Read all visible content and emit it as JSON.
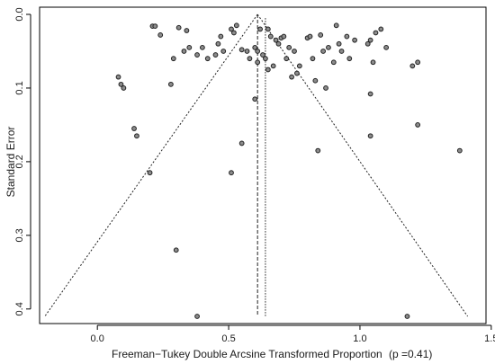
{
  "chart_data": {
    "type": "scatter",
    "title": "",
    "xlabel": "Freeman−Tukey Double Arcsine Transformed Proportion",
    "p_label": "(p =0.41)",
    "ylabel": "Standard Error",
    "xlim": [
      -0.22,
      1.48
    ],
    "ylim": [
      0.0,
      0.41
    ],
    "y_inverted": true,
    "grid": false,
    "x_ticks": [
      0.0,
      0.5,
      1.0,
      1.5
    ],
    "x_tick_labels": [
      "0.0",
      "0.5",
      "1.0",
      "1.5"
    ],
    "y_ticks": [
      0.0,
      0.1,
      0.2,
      0.3,
      0.4
    ],
    "y_tick_labels": [
      "0.0",
      "0.1",
      "0.2",
      "0.3",
      "0.4"
    ],
    "pooled_estimate": 0.61,
    "reference_line": 0.64,
    "funnel": {
      "apex": [
        0.61,
        0.0
      ],
      "left_base": [
        -0.2,
        0.41
      ],
      "right_base": [
        1.41,
        0.41
      ]
    },
    "points": [
      {
        "x": 0.21,
        "y": 0.016
      },
      {
        "x": 0.22,
        "y": 0.016
      },
      {
        "x": 0.24,
        "y": 0.028
      },
      {
        "x": 0.31,
        "y": 0.018
      },
      {
        "x": 0.34,
        "y": 0.022
      },
      {
        "x": 0.29,
        "y": 0.06
      },
      {
        "x": 0.33,
        "y": 0.05
      },
      {
        "x": 0.35,
        "y": 0.045
      },
      {
        "x": 0.38,
        "y": 0.055
      },
      {
        "x": 0.4,
        "y": 0.045
      },
      {
        "x": 0.42,
        "y": 0.06
      },
      {
        "x": 0.45,
        "y": 0.055
      },
      {
        "x": 0.46,
        "y": 0.04
      },
      {
        "x": 0.47,
        "y": 0.03
      },
      {
        "x": 0.48,
        "y": 0.05
      },
      {
        "x": 0.51,
        "y": 0.02
      },
      {
        "x": 0.52,
        "y": 0.025
      },
      {
        "x": 0.53,
        "y": 0.015
      },
      {
        "x": 0.55,
        "y": 0.048
      },
      {
        "x": 0.57,
        "y": 0.05
      },
      {
        "x": 0.58,
        "y": 0.06
      },
      {
        "x": 0.6,
        "y": 0.045
      },
      {
        "x": 0.61,
        "y": 0.05
      },
      {
        "x": 0.62,
        "y": 0.02
      },
      {
        "x": 0.63,
        "y": 0.055
      },
      {
        "x": 0.64,
        "y": 0.06
      },
      {
        "x": 0.65,
        "y": 0.02
      },
      {
        "x": 0.66,
        "y": 0.03
      },
      {
        "x": 0.67,
        "y": 0.07
      },
      {
        "x": 0.68,
        "y": 0.035
      },
      {
        "x": 0.69,
        "y": 0.04
      },
      {
        "x": 0.7,
        "y": 0.032
      },
      {
        "x": 0.71,
        "y": 0.03
      },
      {
        "x": 0.72,
        "y": 0.06
      },
      {
        "x": 0.73,
        "y": 0.045
      },
      {
        "x": 0.75,
        "y": 0.05
      },
      {
        "x": 0.76,
        "y": 0.08
      },
      {
        "x": 0.77,
        "y": 0.07
      },
      {
        "x": 0.8,
        "y": 0.032
      },
      {
        "x": 0.81,
        "y": 0.03
      },
      {
        "x": 0.82,
        "y": 0.06
      },
      {
        "x": 0.85,
        "y": 0.028
      },
      {
        "x": 0.86,
        "y": 0.05
      },
      {
        "x": 0.88,
        "y": 0.045
      },
      {
        "x": 0.9,
        "y": 0.065
      },
      {
        "x": 0.91,
        "y": 0.015
      },
      {
        "x": 0.92,
        "y": 0.04
      },
      {
        "x": 0.93,
        "y": 0.05
      },
      {
        "x": 0.95,
        "y": 0.03
      },
      {
        "x": 0.96,
        "y": 0.06
      },
      {
        "x": 0.98,
        "y": 0.035
      },
      {
        "x": 1.03,
        "y": 0.04
      },
      {
        "x": 1.04,
        "y": 0.035
      },
      {
        "x": 1.05,
        "y": 0.065
      },
      {
        "x": 1.06,
        "y": 0.025
      },
      {
        "x": 1.08,
        "y": 0.02
      },
      {
        "x": 1.1,
        "y": 0.045
      },
      {
        "x": 1.2,
        "y": 0.07
      },
      {
        "x": 1.22,
        "y": 0.065
      },
      {
        "x": 0.61,
        "y": 0.065
      },
      {
        "x": 0.65,
        "y": 0.075
      },
      {
        "x": 0.83,
        "y": 0.09
      },
      {
        "x": 0.74,
        "y": 0.085
      },
      {
        "x": 0.87,
        "y": 0.1
      },
      {
        "x": 1.04,
        "y": 0.108
      },
      {
        "x": 0.08,
        "y": 0.085
      },
      {
        "x": 0.09,
        "y": 0.095
      },
      {
        "x": 0.1,
        "y": 0.1
      },
      {
        "x": 0.28,
        "y": 0.095
      },
      {
        "x": 0.6,
        "y": 0.115
      },
      {
        "x": 0.14,
        "y": 0.155
      },
      {
        "x": 0.15,
        "y": 0.165
      },
      {
        "x": 1.22,
        "y": 0.15
      },
      {
        "x": 1.04,
        "y": 0.165
      },
      {
        "x": 0.55,
        "y": 0.175
      },
      {
        "x": 0.84,
        "y": 0.185
      },
      {
        "x": 1.38,
        "y": 0.185
      },
      {
        "x": 0.2,
        "y": 0.215
      },
      {
        "x": 0.51,
        "y": 0.215
      },
      {
        "x": 0.3,
        "y": 0.32
      },
      {
        "x": 0.38,
        "y": 0.41
      },
      {
        "x": 1.18,
        "y": 0.41
      }
    ]
  }
}
